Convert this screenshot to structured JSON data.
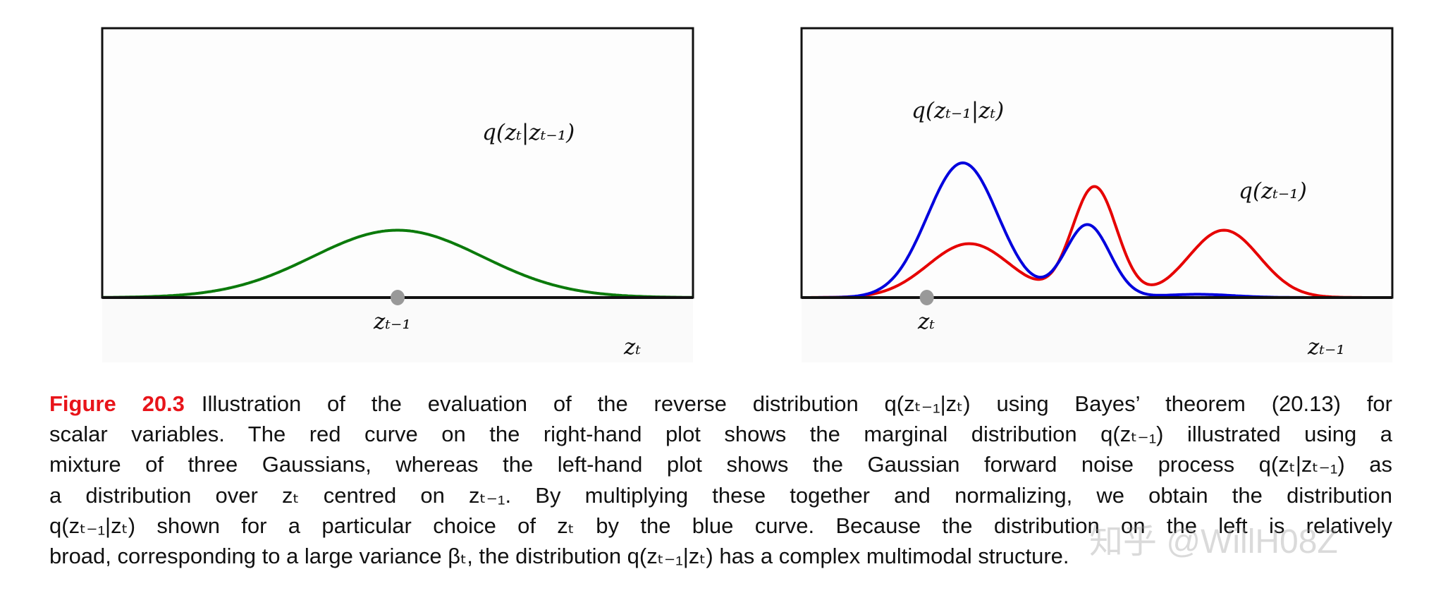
{
  "chart_data": [
    {
      "type": "line",
      "panel": "left",
      "x_domain": [
        0,
        10
      ],
      "y_domain": [
        0,
        1
      ],
      "grid": false,
      "series": [
        {
          "label": "q(zₜ|zₜ₋₁)",
          "color": "#0b7a0b",
          "components": [
            {
              "mean": 5.0,
              "sd": 1.44,
              "height": 0.25
            }
          ]
        }
      ],
      "marker": {
        "x": 5.0,
        "label": "zₜ₋₁",
        "color": "#999999"
      },
      "xlabel": "zₜ"
    },
    {
      "type": "line",
      "panel": "right",
      "x_domain": [
        0,
        10
      ],
      "y_domain": [
        0,
        1
      ],
      "grid": false,
      "series": [
        {
          "label": "q(zₜ₋₁)",
          "color": "#e60000",
          "components": [
            {
              "mean": 2.84,
              "sd": 0.7,
              "height": 0.2
            },
            {
              "mean": 4.96,
              "sd": 0.38,
              "height": 0.41
            },
            {
              "mean": 7.15,
              "sd": 0.6,
              "height": 0.25
            }
          ]
        },
        {
          "label": "q(zₜ₋₁|zₜ)",
          "color": "#0000dd",
          "components": [
            {
              "mean": 2.73,
              "sd": 0.6,
              "height": 0.5
            },
            {
              "mean": 4.84,
              "sd": 0.38,
              "height": 0.27
            },
            {
              "mean": 6.7,
              "sd": 0.6,
              "height": 0.012
            }
          ]
        }
      ],
      "marker": {
        "x": 2.12,
        "label": "zₜ",
        "color": "#999999"
      },
      "xlabel": "zₜ₋₁"
    }
  ],
  "caption": {
    "figure_label": "Figure 20.3",
    "lines": [
      "Illustration of the evaluation of the reverse distribution q(zₜ₋₁|zₜ) using Bayes’ theorem (20.13) for",
      "scalar variables. The red curve on the right-hand plot shows the marginal distribution q(zₜ₋₁) illustrated using a",
      "mixture of three Gaussians, whereas the left-hand plot shows the Gaussian forward noise process q(zₜ|zₜ₋₁) as",
      "a distribution over zₜ centred on zₜ₋₁. By multiplying these together and normalizing, we obtain the distribution",
      "q(zₜ₋₁|zₜ) shown for a particular choice of zₜ by the blue curve. Because the distribution on the left is relatively",
      "broad, corresponding to a large variance βₜ, the distribution q(zₜ₋₁|zₜ) has a complex multimodal structure."
    ]
  },
  "watermark": "知乎 @WillH08Z"
}
